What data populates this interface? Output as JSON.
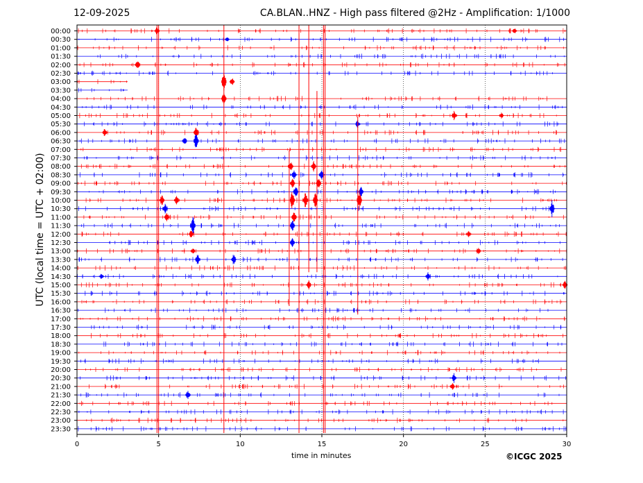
{
  "header": {
    "date": "12-09-2025",
    "title": "CA.BLAN..HNZ - High pass filtered @2Hz - Amplification: 1/1000"
  },
  "footer": {
    "copyright": "©ICGC 2025"
  },
  "chart_data": {
    "type": "line",
    "xlabel": "time in minutes",
    "ylabel": "UTC (local time = UTC + 02:00)",
    "xlim": [
      0,
      30
    ],
    "x_ticks": [
      0,
      5,
      10,
      15,
      20,
      25,
      30
    ],
    "grid": "vertical dotted lines every 5 minutes",
    "row_colors": [
      "#ff0000",
      "#0000ff"
    ],
    "rows": [
      "00:00",
      "00:30",
      "01:00",
      "01:30",
      "02:00",
      "02:30",
      "03:00",
      "03:30",
      "04:00",
      "04:30",
      "05:00",
      "05:30",
      "06:00",
      "06:30",
      "07:00",
      "07:30",
      "08:00",
      "08:30",
      "09:00",
      "09:30",
      "10:00",
      "10:30",
      "11:00",
      "11:30",
      "12:00",
      "12:30",
      "13:00",
      "13:30",
      "14:00",
      "14:30",
      "15:00",
      "15:30",
      "16:00",
      "16:30",
      "17:00",
      "17:30",
      "18:00",
      "18:30",
      "19:00",
      "19:30",
      "20:00",
      "20:30",
      "21:00",
      "21:30",
      "22:00",
      "22:30",
      "23:00",
      "23:30"
    ],
    "data_coverage_min": {
      "03:00": [
        0,
        3.1
      ],
      "03:30": [
        0,
        3.1
      ]
    },
    "events": [
      {
        "row": "00:00",
        "t": 4.9,
        "amp": 0.5
      },
      {
        "row": "00:00",
        "t": 26.8,
        "amp": 0.4
      },
      {
        "row": "00:30",
        "t": 9.2,
        "amp": 0.3
      },
      {
        "row": "02:00",
        "t": 3.7,
        "amp": 0.6
      },
      {
        "row": "03:00",
        "t": 9.0,
        "amp": 1.2
      },
      {
        "row": "03:00",
        "t": 9.5,
        "amp": 0.5
      },
      {
        "row": "04:00",
        "t": 9.0,
        "amp": 0.8
      },
      {
        "row": "05:00",
        "t": 23.1,
        "amp": 0.6
      },
      {
        "row": "05:00",
        "t": 26.0,
        "amp": 0.4
      },
      {
        "row": "05:30",
        "t": 17.2,
        "amp": 0.5
      },
      {
        "row": "06:00",
        "t": 1.7,
        "amp": 0.5
      },
      {
        "row": "06:00",
        "t": 7.3,
        "amp": 0.7
      },
      {
        "row": "06:30",
        "t": 7.3,
        "amp": 1.0
      },
      {
        "row": "06:30",
        "t": 6.6,
        "amp": 0.5
      },
      {
        "row": "08:00",
        "t": 13.1,
        "amp": 0.6
      },
      {
        "row": "08:00",
        "t": 14.5,
        "amp": 0.7
      },
      {
        "row": "08:30",
        "t": 13.3,
        "amp": 0.6
      },
      {
        "row": "08:30",
        "t": 15.0,
        "amp": 0.6
      },
      {
        "row": "09:00",
        "t": 13.2,
        "amp": 0.7
      },
      {
        "row": "09:00",
        "t": 14.8,
        "amp": 0.7
      },
      {
        "row": "09:30",
        "t": 13.4,
        "amp": 0.8
      },
      {
        "row": "09:30",
        "t": 17.4,
        "amp": 0.7
      },
      {
        "row": "10:00",
        "t": 5.2,
        "amp": 0.7
      },
      {
        "row": "10:00",
        "t": 6.1,
        "amp": 0.6
      },
      {
        "row": "10:00",
        "t": 13.2,
        "amp": 1.2
      },
      {
        "row": "10:00",
        "t": 14.0,
        "amp": 1.0
      },
      {
        "row": "10:00",
        "t": 14.6,
        "amp": 0.9
      },
      {
        "row": "10:00",
        "t": 17.3,
        "amp": 1.2
      },
      {
        "row": "10:30",
        "t": 5.4,
        "amp": 0.6
      },
      {
        "row": "10:30",
        "t": 29.1,
        "amp": 1.0
      },
      {
        "row": "11:00",
        "t": 5.5,
        "amp": 0.6
      },
      {
        "row": "11:00",
        "t": 13.3,
        "amp": 0.8
      },
      {
        "row": "11:30",
        "t": 7.1,
        "amp": 1.2
      },
      {
        "row": "11:30",
        "t": 13.2,
        "amp": 0.7
      },
      {
        "row": "12:00",
        "t": 7.0,
        "amp": 0.5
      },
      {
        "row": "12:00",
        "t": 24.0,
        "amp": 0.4
      },
      {
        "row": "12:30",
        "t": 13.2,
        "amp": 0.6
      },
      {
        "row": "13:00",
        "t": 7.1,
        "amp": 0.4
      },
      {
        "row": "13:00",
        "t": 24.6,
        "amp": 0.4
      },
      {
        "row": "13:30",
        "t": 7.4,
        "amp": 0.7
      },
      {
        "row": "13:30",
        "t": 9.6,
        "amp": 0.7
      },
      {
        "row": "14:30",
        "t": 1.5,
        "amp": 0.4
      },
      {
        "row": "14:30",
        "t": 21.5,
        "amp": 0.5
      },
      {
        "row": "15:00",
        "t": 14.2,
        "amp": 0.6
      },
      {
        "row": "15:00",
        "t": 29.9,
        "amp": 0.5
      },
      {
        "row": "20:30",
        "t": 23.1,
        "amp": 0.6
      },
      {
        "row": "21:00",
        "t": 23.0,
        "amp": 0.5
      },
      {
        "row": "21:30",
        "t": 6.8,
        "amp": 0.6
      }
    ],
    "full_height_spikes": [
      {
        "t": 4.9,
        "rows": [
          "00:00",
          "23:30"
        ],
        "color": "#ff0000"
      },
      {
        "t": 5.0,
        "rows": [
          "00:00",
          "23:30"
        ],
        "color": "#ff0000"
      },
      {
        "t": 9.0,
        "rows": [
          "00:00",
          "23:30"
        ],
        "color": "#ff0000"
      },
      {
        "t": 13.6,
        "rows": [
          "00:00",
          "23:30"
        ],
        "color": "#ff0000"
      },
      {
        "t": 15.1,
        "rows": [
          "00:00",
          "23:30"
        ],
        "color": "#ff0000"
      },
      {
        "t": 15.2,
        "rows": [
          "00:00",
          "23:30"
        ],
        "color": "#ff0000"
      },
      {
        "t": 14.2,
        "rows": [
          "00:00",
          "14:00"
        ],
        "color": "#ff0000"
      },
      {
        "t": 14.7,
        "rows": [
          "04:00",
          "14:00"
        ],
        "color": "#ff0000"
      },
      {
        "t": 17.2,
        "rows": [
          "05:30",
          "16:30"
        ],
        "color": "#ff0000"
      },
      {
        "t": 13.0,
        "rows": [
          "07:30",
          "16:00"
        ],
        "color": "#ff0000"
      }
    ]
  }
}
